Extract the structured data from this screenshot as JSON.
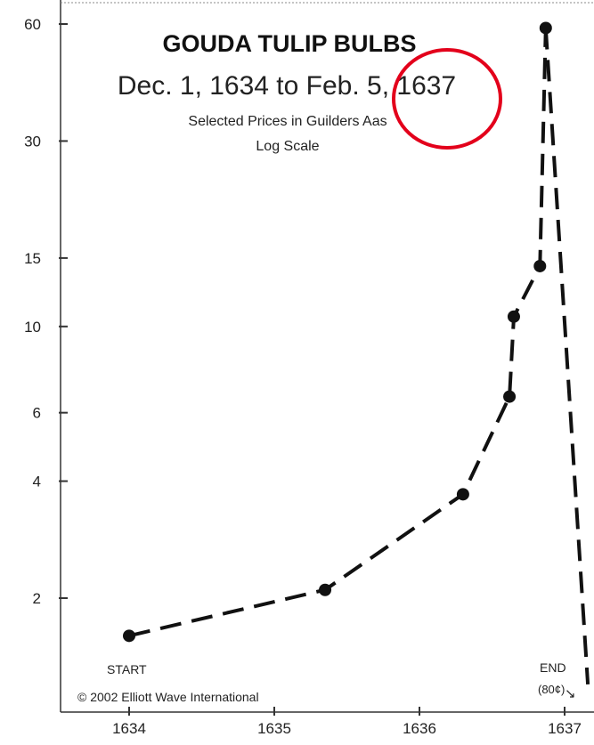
{
  "chart_data": {
    "type": "line",
    "title": "GOUDA TULIP BULBS",
    "subtitle": "Dec. 1, 1634 to Feb. 5, 1637",
    "note_line1": "Selected Prices in Guilders Aas",
    "note_line2": "Log Scale",
    "y_scale": "log",
    "ylim": [
      1.2,
      60
    ],
    "y_ticks": [
      60,
      30,
      15,
      10,
      6,
      4,
      2
    ],
    "xlim": [
      1633.95,
      1637.25
    ],
    "x_ticks": [
      1634,
      1635,
      1636,
      1637
    ],
    "series": [
      {
        "line_style": "dashed",
        "color": "#111111",
        "x": [
          1634.0,
          1635.35,
          1636.3,
          1636.62,
          1636.65,
          1636.83,
          1636.87
        ],
        "y": [
          1.6,
          2.1,
          3.7,
          6.6,
          10.6,
          14.3,
          58.6
        ]
      },
      {
        "line_style": "dashed",
        "color": "#111111",
        "x": [
          1636.87,
          1637.16
        ],
        "y": [
          58.6,
          1.2
        ]
      }
    ],
    "annotations": {
      "start_label": "START",
      "end_label": "END",
      "end_value": "(80¢)",
      "end_arrow": "↘",
      "copyright": "© 2002  Elliott Wave International"
    },
    "highlight": {
      "color": "#e3001b",
      "target": "1637 in subtitle"
    }
  }
}
